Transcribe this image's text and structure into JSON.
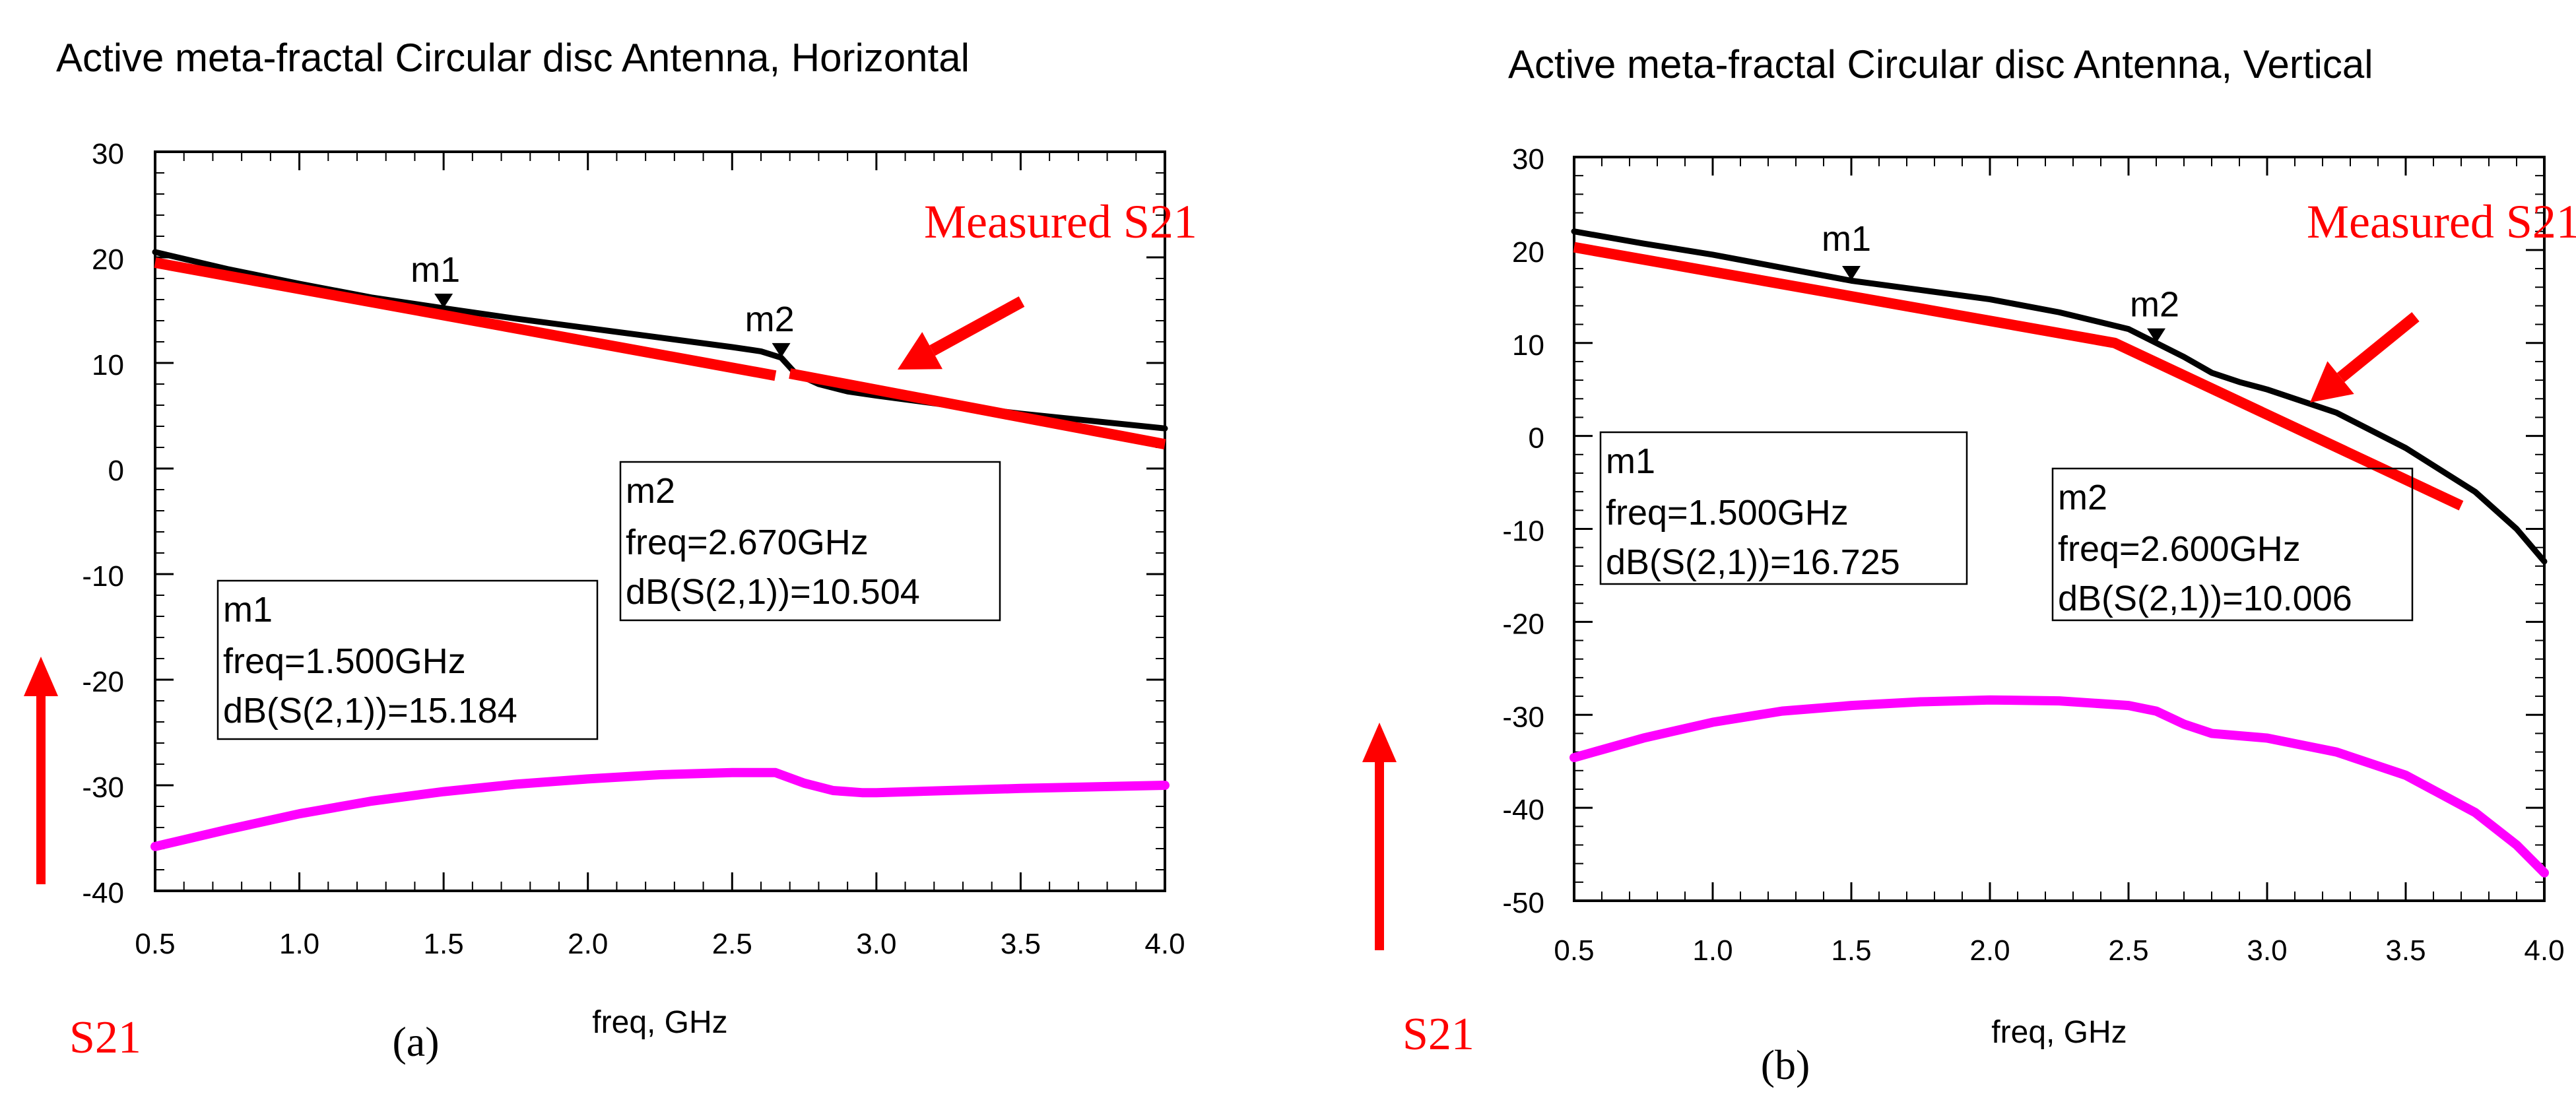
{
  "colors": {
    "simulated": "#000000",
    "measured_s21": "#ff0000",
    "lower_trace": "#ff00ff",
    "annotation": "#ff0000",
    "grid_frame": "#000000"
  },
  "chart_data": [
    {
      "type": "line",
      "panel_label": "(a)",
      "title": "Active meta-fractal Circular disc Antenna, Horizontal",
      "xlabel": "freq, GHz",
      "ylabel": "",
      "xlim": [
        0.5,
        4.0
      ],
      "ylim": [
        -40,
        30
      ],
      "x_ticks": [
        "0.5",
        "1.0",
        "1.5",
        "2.0",
        "2.5",
        "3.0",
        "3.5",
        "4.0"
      ],
      "y_ticks": [
        "30",
        "20",
        "10",
        "0",
        "-10",
        "-20",
        "-30",
        "-40"
      ],
      "annotation_text": "Measured S21",
      "side_label": "S21",
      "series": [
        {
          "role": "simulated",
          "x": [
            0.5,
            0.75,
            1.0,
            1.25,
            1.5,
            1.75,
            2.0,
            2.25,
            2.5,
            2.6,
            2.67,
            2.72,
            2.8,
            2.9,
            3.0,
            3.25,
            3.5,
            3.75,
            4.0
          ],
          "y": [
            20.5,
            18.9,
            17.5,
            16.2,
            15.18,
            14.2,
            13.3,
            12.4,
            11.5,
            11.1,
            10.5,
            9.0,
            8.0,
            7.3,
            6.9,
            6.0,
            5.2,
            4.5,
            3.8
          ]
        },
        {
          "role": "measured",
          "segments": [
            {
              "x": [
                0.5,
                2.65
              ],
              "y": [
                19.5,
                8.8
              ]
            },
            {
              "x": [
                2.7,
                4.0
              ],
              "y": [
                9.0,
                2.3
              ]
            }
          ]
        },
        {
          "role": "lower",
          "x": [
            0.5,
            0.75,
            1.0,
            1.25,
            1.5,
            1.75,
            2.0,
            2.25,
            2.5,
            2.65,
            2.75,
            2.85,
            2.95,
            3.0,
            3.5,
            4.0
          ],
          "y": [
            -35.8,
            -34.2,
            -32.7,
            -31.5,
            -30.6,
            -29.9,
            -29.4,
            -29.0,
            -28.8,
            -28.8,
            -29.8,
            -30.5,
            -30.7,
            -30.7,
            -30.3,
            -30.0
          ]
        }
      ],
      "markers": [
        {
          "name": "m1",
          "freq": "freq=1.500GHz",
          "value": "dB(S(2,1))=15.184",
          "x": 1.5,
          "y": 15.184
        },
        {
          "name": "m2",
          "freq": "freq=2.670GHz",
          "value": "dB(S(2,1))=10.504",
          "x": 2.67,
          "y": 10.504
        }
      ]
    },
    {
      "type": "line",
      "panel_label": "(b)",
      "title": "Active meta-fractal Circular disc Antenna, Vertical",
      "xlabel": "freq, GHz",
      "ylabel": "",
      "xlim": [
        0.5,
        4.0
      ],
      "ylim": [
        -50,
        30
      ],
      "x_ticks": [
        "0.5",
        "1.0",
        "1.5",
        "2.0",
        "2.5",
        "3.0",
        "3.5",
        "4.0"
      ],
      "y_ticks": [
        "30",
        "20",
        "10",
        "0",
        "-10",
        "-20",
        "-30",
        "-40",
        "-50"
      ],
      "annotation_text": "Measured S21",
      "side_label": "S21",
      "series": [
        {
          "role": "simulated",
          "x": [
            0.5,
            0.75,
            1.0,
            1.25,
            1.5,
            1.75,
            2.0,
            2.25,
            2.5,
            2.6,
            2.7,
            2.8,
            2.9,
            3.0,
            3.25,
            3.5,
            3.75,
            3.9,
            4.0
          ],
          "y": [
            22.0,
            20.7,
            19.5,
            18.1,
            16.7,
            15.7,
            14.7,
            13.3,
            11.5,
            10.0,
            8.5,
            6.8,
            5.8,
            5.0,
            2.5,
            -1.3,
            -6.0,
            -10.0,
            -13.5
          ]
        },
        {
          "role": "measured",
          "segments": [
            {
              "x": [
                0.5,
                2.45,
                3.7
              ],
              "y": [
                20.3,
                10.0,
                -7.5
              ]
            }
          ]
        },
        {
          "role": "lower",
          "x": [
            0.5,
            0.75,
            1.0,
            1.25,
            1.5,
            1.75,
            2.0,
            2.25,
            2.5,
            2.6,
            2.7,
            2.8,
            3.0,
            3.25,
            3.5,
            3.75,
            3.9,
            4.0
          ],
          "y": [
            -34.6,
            -32.5,
            -30.8,
            -29.6,
            -29.0,
            -28.6,
            -28.4,
            -28.5,
            -29.0,
            -29.6,
            -31.0,
            -32.0,
            -32.5,
            -34.0,
            -36.5,
            -40.5,
            -44.0,
            -47.0
          ]
        }
      ],
      "markers": [
        {
          "name": "m1",
          "freq": "freq=1.500GHz",
          "value": "dB(S(2,1))=16.725",
          "x": 1.5,
          "y": 16.725
        },
        {
          "name": "m2",
          "freq": "freq=2.600GHz",
          "value": "dB(S(2,1))=10.006",
          "x": 2.6,
          "y": 10.006
        }
      ]
    }
  ]
}
